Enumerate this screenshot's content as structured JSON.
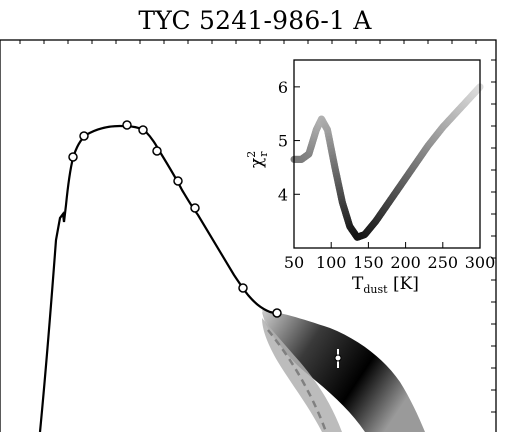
{
  "chart_data": [
    {
      "type": "line",
      "role": "main-sed",
      "title": "TYC 5241-986-1 A",
      "xlabel": "",
      "ylabel": "",
      "photometry_points": [
        {
          "name": "p1"
        },
        {
          "name": "p2"
        },
        {
          "name": "p3"
        },
        {
          "name": "p4"
        },
        {
          "name": "p5"
        },
        {
          "name": "p6"
        },
        {
          "name": "p7"
        },
        {
          "name": "p8"
        },
        {
          "name": "p9"
        },
        {
          "name": "p10"
        }
      ],
      "excess_point": {
        "name": "excess"
      },
      "stellar_photosphere_style": "dashed",
      "colors": {
        "model": "#000000",
        "photosphere": "#808080",
        "points_edge": "#000000",
        "points_fill": "#ffffff"
      }
    },
    {
      "type": "line",
      "role": "inset",
      "xlabel_main": "T",
      "xlabel_sub": "dust",
      "xlabel_unit": " [K]",
      "ylabel_main": "χ",
      "ylabel_sub": "r",
      "ylabel_sup": "2",
      "xlim": [
        50,
        300
      ],
      "ylim": [
        3.0,
        6.5
      ],
      "xticks": [
        50,
        100,
        150,
        200,
        250,
        300
      ],
      "yticks": [
        4,
        5,
        6
      ],
      "series": [
        {
          "x": [
            50,
            60,
            70,
            80,
            87,
            95,
            105,
            115,
            125,
            135,
            145,
            160,
            175,
            190,
            210,
            230,
            250,
            270,
            290,
            300
          ],
          "values": [
            4.65,
            4.65,
            4.75,
            5.2,
            5.4,
            5.2,
            4.5,
            3.85,
            3.4,
            3.2,
            3.25,
            3.5,
            3.8,
            4.1,
            4.5,
            4.9,
            5.25,
            5.55,
            5.85,
            6.0
          ]
        }
      ]
    }
  ]
}
